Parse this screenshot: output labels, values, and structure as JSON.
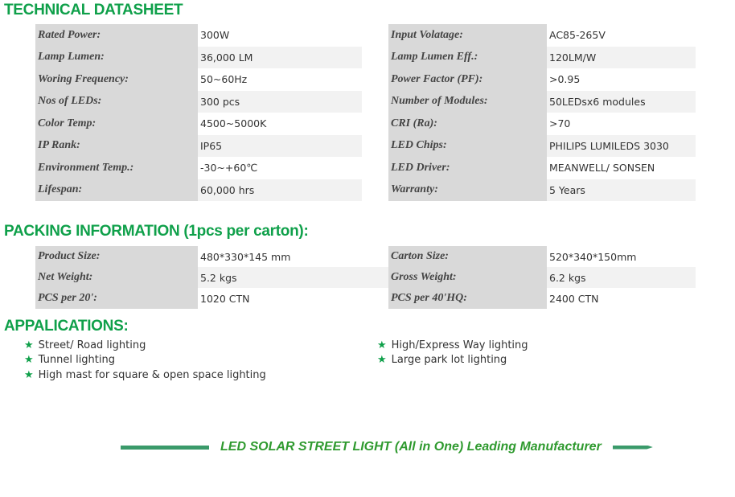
{
  "tech": {
    "title": "TECHNICAL DATASHEET",
    "left": [
      [
        "Rated Power:",
        "300W"
      ],
      [
        "Lamp Lumen:",
        "36,000 LM"
      ],
      [
        "Woring Frequency:",
        "50~60Hz"
      ],
      [
        "Nos of LEDs:",
        "300 pcs"
      ],
      [
        "Color Temp:",
        "4500~5000K"
      ],
      [
        "IP Rank:",
        "IP65"
      ],
      [
        "Environment Temp.:",
        "-30~+60℃"
      ],
      [
        "Lifespan:",
        "60,000 hrs"
      ]
    ],
    "right": [
      [
        "Input Volatage:",
        "AC85-265V"
      ],
      [
        "Lamp Lumen Eff.:",
        "120LM/W"
      ],
      [
        "Power Factor (PF):",
        ">0.95"
      ],
      [
        "Number of Modules:",
        "50LEDsx6 modules"
      ],
      [
        "CRI (Ra):",
        ">70"
      ],
      [
        "LED Chips:",
        "PHILIPS LUMILEDS 3030"
      ],
      [
        "LED Driver:",
        "MEANWELL/ SONSEN"
      ],
      [
        "Warranty:",
        "5 Years"
      ]
    ]
  },
  "packing": {
    "title": "PACKING INFORMATION (1pcs per carton):",
    "left": [
      [
        "Product Size:",
        "480*330*145 mm"
      ],
      [
        "Net Weight:",
        "5.2 kgs"
      ],
      [
        "PCS per 20':",
        "1020 CTN"
      ]
    ],
    "right": [
      [
        "Carton Size:",
        "520*340*150mm"
      ],
      [
        "Gross Weight:",
        "6.2 kgs"
      ],
      [
        "PCS per 40'HQ:",
        "2400 CTN"
      ]
    ]
  },
  "apps": {
    "title": "APPALICATIONS:",
    "left": [
      "Street/ Road lighting",
      "Tunnel lighting",
      "High mast for square & open space lighting"
    ],
    "right": [
      "High/Express Way lighting",
      "Large park lot lighting"
    ],
    "bullet_icon": "star-icon",
    "color": "#0fa04a"
  },
  "banner": "LED SOLAR STREET LIGHT (All in One) Leading Manufacturer"
}
